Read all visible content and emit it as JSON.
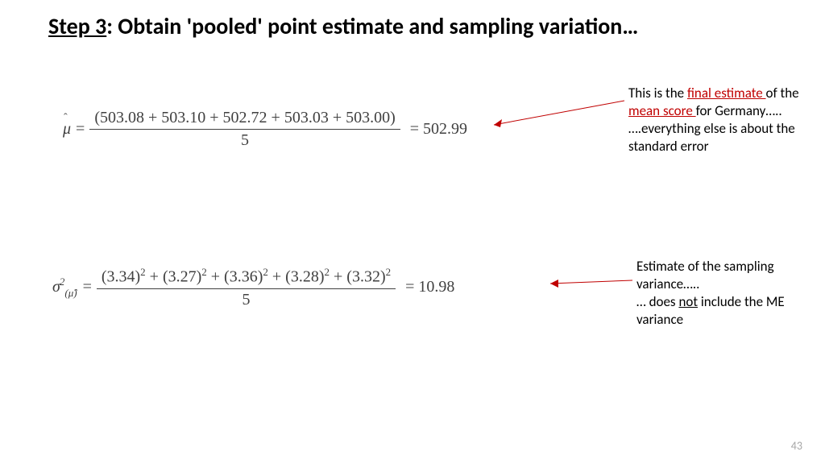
{
  "title": {
    "step": "Step 3",
    "rest": ": Obtain 'pooled' point estimate and sampling variation…"
  },
  "eq1": {
    "lhs_symbol": "μ",
    "hat": "ˆ",
    "numerator": "(503.08 + 503.10 + 502.72 + 503.03 + 503.00)",
    "denominator": "5",
    "result": "= 502.99"
  },
  "eq2": {
    "lhs_symbol": "σ",
    "sup": "2",
    "sub": "(μ̂)",
    "terms": [
      "(3.34)",
      "(3.27)",
      "(3.36)",
      "(3.28)",
      "(3.32)"
    ],
    "denominator": "5",
    "result": "= 10.98"
  },
  "annotation1": {
    "line1a": "This is the ",
    "link1": "final estimate ",
    "line1b": "of the ",
    "link2": "mean score ",
    "line1c": "for Germany…..",
    "line2": "….everything else is about the standard error"
  },
  "annotation2": {
    "line1": "Estimate of the sampling variance…..",
    "line2a": "… does ",
    "under": "not",
    "line2b": " include the ME variance"
  },
  "page_number": "43",
  "colors": {
    "red": "#c00000",
    "text": "#000000",
    "math": "#404040",
    "pagenum": "#a6a6a6",
    "bg": "#ffffff"
  }
}
